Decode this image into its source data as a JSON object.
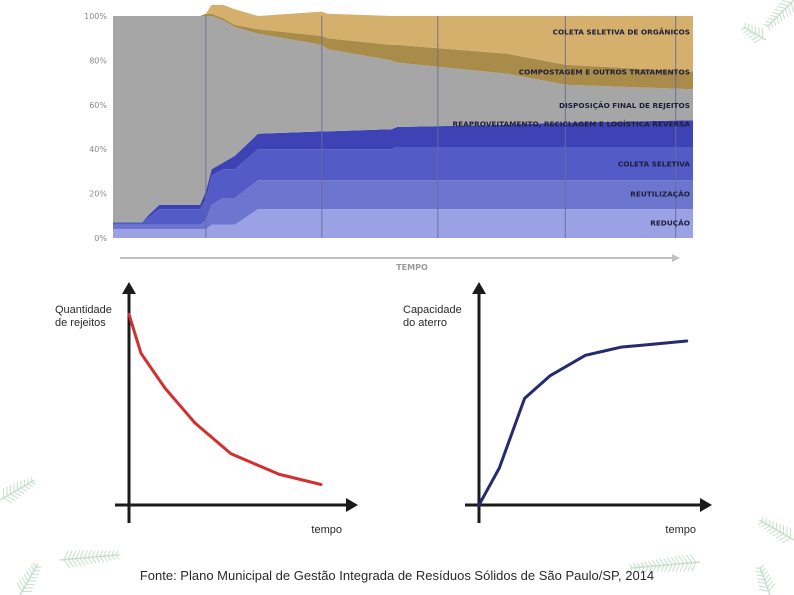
{
  "colors": {
    "organicos": "#d4b06c",
    "compostagem": "#a98c4a",
    "aterro": "#a6a6a6",
    "reciclagem": "#3d42b5",
    "coleta": "#525bc6",
    "reutilizacao": "#6d76cf",
    "reducao": "#9aa1e4",
    "red_curve": "#d32f2f",
    "navy_curve": "#262a6e",
    "axis": "#1a1a1a",
    "deco_green": "#9cc4a4"
  },
  "icons": [
    "pine-branch-icon"
  ],
  "chart_data": [
    {
      "type": "area",
      "stacked": true,
      "x": [
        0,
        5,
        6,
        8,
        15,
        16,
        17,
        19,
        21,
        25,
        36,
        37,
        48,
        49,
        68,
        78,
        100
      ],
      "series": [
        {
          "name": "REDUÇÃO",
          "values": [
            4,
            4,
            4,
            4,
            4,
            4,
            6,
            6,
            6,
            13,
            13,
            13,
            13,
            13,
            13,
            13,
            13
          ]
        },
        {
          "name": "REUTILIZAÇÃO",
          "values": [
            2,
            2,
            2,
            2,
            2,
            4,
            9,
            12,
            12,
            13,
            13,
            13,
            13,
            13,
            13,
            13,
            13
          ]
        },
        {
          "name": "COLETA SELETIVA",
          "values": [
            1,
            1,
            3,
            7,
            7,
            9,
            13,
            13,
            13,
            14,
            14,
            14,
            14,
            15,
            15,
            15,
            15
          ]
        },
        {
          "name": "REAPROVEITAMENTO, RECICLAGEM E LOGÍSTICA REVERSA",
          "values": [
            0,
            0,
            1,
            2,
            2,
            4,
            3,
            3,
            6,
            7,
            8,
            8,
            9,
            9,
            10,
            11,
            12
          ]
        },
        {
          "name": "DISPOSIÇÃO FINAL DE REJEITOS",
          "values": [
            93,
            93,
            90,
            85,
            85,
            79,
            69,
            64,
            58,
            45,
            39,
            37,
            31,
            29,
            23,
            17,
            14
          ]
        },
        {
          "name": "COMPOSTAGEM E OUTROS TRATAMENTOS",
          "values": [
            0,
            0,
            0,
            0,
            0,
            1,
            1,
            1,
            1,
            2,
            4,
            5,
            7,
            8,
            9,
            9,
            8
          ]
        },
        {
          "name": "COLETA SELETIVA DE ORGÂNICOS",
          "values": [
            0,
            0,
            0,
            0,
            0,
            0,
            4,
            6,
            7,
            6,
            11,
            11,
            13,
            13,
            17,
            22,
            25
          ]
        }
      ],
      "ytick_labels": [
        "100%",
        "80%",
        "60%",
        "40%",
        "20%",
        "0%"
      ],
      "ylim": [
        0,
        100
      ],
      "xlabel": "TEMPO",
      "ylabel": "",
      "title": "",
      "grid": false,
      "legend": "inline labels at right edge"
    },
    {
      "type": "line",
      "ylabel": "Quantidade de rejeitos",
      "xlabel": "tempo",
      "title": "",
      "series": [
        {
          "values": [
            [
              0,
              93
            ],
            [
              2,
              74
            ],
            [
              6,
              57
            ],
            [
              11,
              40
            ],
            [
              17,
              25
            ],
            [
              25,
              15
            ],
            [
              32,
              10
            ]
          ]
        }
      ],
      "xlim": [
        0,
        38
      ],
      "ylim": [
        0,
        100
      ]
    },
    {
      "type": "line",
      "ylabel": "Capacidade do aterro",
      "xlabel": "tempo",
      "title": "",
      "series": [
        {
          "values": [
            [
              0,
              0
            ],
            [
              4,
              18
            ],
            [
              9,
              52
            ],
            [
              14,
              63
            ],
            [
              21,
              73
            ],
            [
              28,
              77
            ],
            [
              41,
              80
            ]
          ]
        }
      ],
      "xlim": [
        0,
        45
      ],
      "ylim": [
        0,
        100
      ]
    }
  ],
  "footer": {
    "source": "Fonte:  Plano Municipal de Gestão Integrada de Resíduos Sólidos de São Paulo/SP, 2014"
  }
}
